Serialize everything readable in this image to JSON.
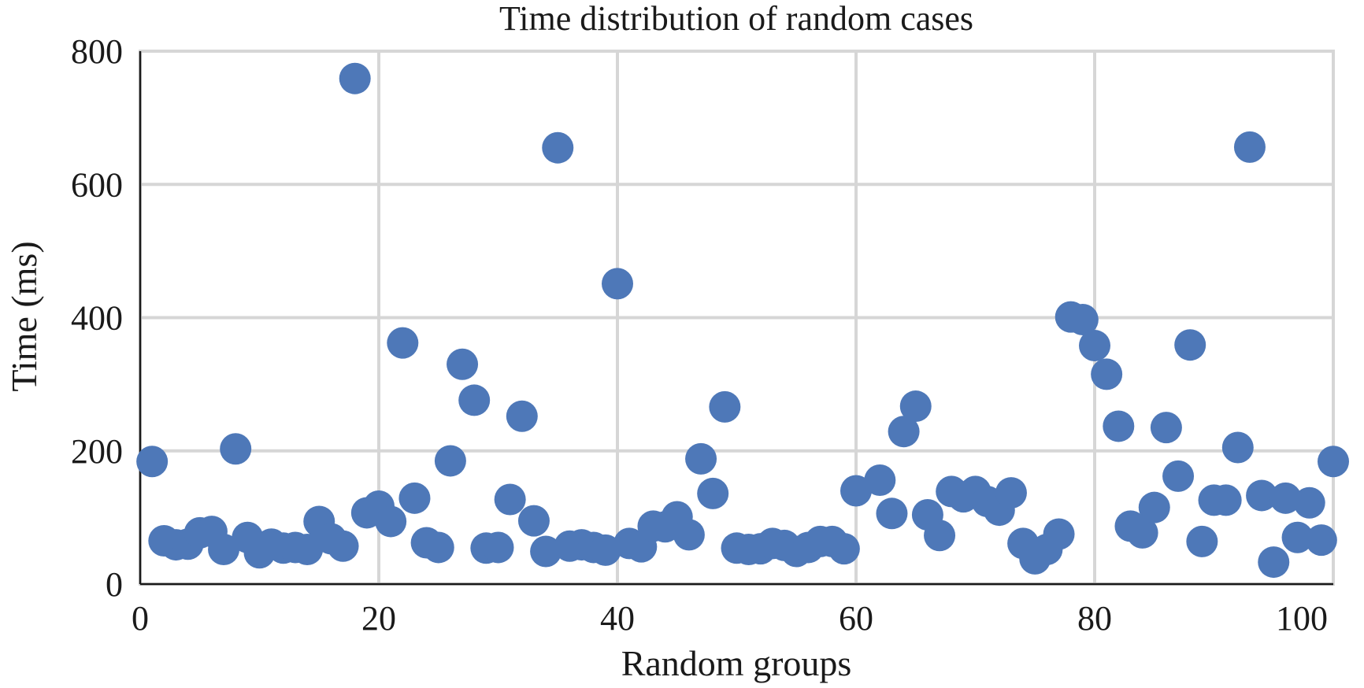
{
  "chart_data": {
    "type": "scatter",
    "title": "Time distribution of random cases",
    "xlabel": "Random groups",
    "ylabel": "Time (ms)",
    "xlim": [
      0,
      100
    ],
    "ylim": [
      0,
      800
    ],
    "x_ticks": [
      "0",
      "20",
      "40",
      "60",
      "80",
      "100"
    ],
    "y_ticks": [
      "0",
      "200",
      "400",
      "600",
      "800"
    ],
    "grid": true,
    "marker_color": "#4e78b8",
    "series": [
      {
        "name": "",
        "points": [
          {
            "x": 1,
            "y": 184
          },
          {
            "x": 2,
            "y": 65
          },
          {
            "x": 3,
            "y": 59
          },
          {
            "x": 4,
            "y": 60
          },
          {
            "x": 5,
            "y": 77
          },
          {
            "x": 6,
            "y": 79
          },
          {
            "x": 7,
            "y": 52
          },
          {
            "x": 8,
            "y": 203
          },
          {
            "x": 9,
            "y": 70
          },
          {
            "x": 10,
            "y": 47
          },
          {
            "x": 11,
            "y": 60
          },
          {
            "x": 12,
            "y": 54
          },
          {
            "x": 13,
            "y": 55
          },
          {
            "x": 14,
            "y": 52
          },
          {
            "x": 15,
            "y": 94
          },
          {
            "x": 16,
            "y": 68
          },
          {
            "x": 17,
            "y": 57
          },
          {
            "x": 18,
            "y": 759
          },
          {
            "x": 19,
            "y": 107
          },
          {
            "x": 20,
            "y": 117
          },
          {
            "x": 21,
            "y": 94
          },
          {
            "x": 22,
            "y": 362
          },
          {
            "x": 23,
            "y": 129
          },
          {
            "x": 24,
            "y": 62
          },
          {
            "x": 25,
            "y": 55
          },
          {
            "x": 26,
            "y": 185
          },
          {
            "x": 27,
            "y": 330
          },
          {
            "x": 28,
            "y": 276
          },
          {
            "x": 29,
            "y": 54
          },
          {
            "x": 30,
            "y": 55
          },
          {
            "x": 31,
            "y": 127
          },
          {
            "x": 32,
            "y": 252
          },
          {
            "x": 33,
            "y": 95
          },
          {
            "x": 34,
            "y": 49
          },
          {
            "x": 35,
            "y": 655
          },
          {
            "x": 36,
            "y": 57
          },
          {
            "x": 37,
            "y": 59
          },
          {
            "x": 38,
            "y": 55
          },
          {
            "x": 39,
            "y": 51
          },
          {
            "x": 40,
            "y": 451
          },
          {
            "x": 41,
            "y": 61
          },
          {
            "x": 42,
            "y": 56
          },
          {
            "x": 43,
            "y": 87
          },
          {
            "x": 44,
            "y": 86
          },
          {
            "x": 45,
            "y": 101
          },
          {
            "x": 46,
            "y": 74
          },
          {
            "x": 47,
            "y": 188
          },
          {
            "x": 48,
            "y": 136
          },
          {
            "x": 49,
            "y": 266
          },
          {
            "x": 50,
            "y": 54
          },
          {
            "x": 51,
            "y": 52
          },
          {
            "x": 52,
            "y": 53
          },
          {
            "x": 53,
            "y": 61
          },
          {
            "x": 54,
            "y": 58
          },
          {
            "x": 55,
            "y": 49
          },
          {
            "x": 56,
            "y": 55
          },
          {
            "x": 57,
            "y": 64
          },
          {
            "x": 58,
            "y": 64
          },
          {
            "x": 59,
            "y": 53
          },
          {
            "x": 60,
            "y": 140
          },
          {
            "x": 62,
            "y": 156
          },
          {
            "x": 63,
            "y": 106
          },
          {
            "x": 64,
            "y": 229
          },
          {
            "x": 65,
            "y": 267
          },
          {
            "x": 66,
            "y": 104
          },
          {
            "x": 67,
            "y": 73
          },
          {
            "x": 68,
            "y": 139
          },
          {
            "x": 69,
            "y": 131
          },
          {
            "x": 70,
            "y": 139
          },
          {
            "x": 71,
            "y": 124
          },
          {
            "x": 72,
            "y": 111
          },
          {
            "x": 73,
            "y": 137
          },
          {
            "x": 74,
            "y": 61
          },
          {
            "x": 75,
            "y": 38
          },
          {
            "x": 76,
            "y": 52
          },
          {
            "x": 77,
            "y": 75
          },
          {
            "x": 78,
            "y": 401
          },
          {
            "x": 79,
            "y": 397
          },
          {
            "x": 80,
            "y": 358
          },
          {
            "x": 81,
            "y": 315
          },
          {
            "x": 82,
            "y": 237
          },
          {
            "x": 83,
            "y": 87
          },
          {
            "x": 84,
            "y": 77
          },
          {
            "x": 85,
            "y": 115
          },
          {
            "x": 86,
            "y": 235
          },
          {
            "x": 87,
            "y": 162
          },
          {
            "x": 88,
            "y": 359
          },
          {
            "x": 89,
            "y": 64
          },
          {
            "x": 90,
            "y": 126
          },
          {
            "x": 91,
            "y": 126
          },
          {
            "x": 92,
            "y": 205
          },
          {
            "x": 93,
            "y": 656
          },
          {
            "x": 94,
            "y": 133
          },
          {
            "x": 95,
            "y": 33
          },
          {
            "x": 96,
            "y": 129
          },
          {
            "x": 97,
            "y": 70
          },
          {
            "x": 98,
            "y": 122
          },
          {
            "x": 99,
            "y": 66
          },
          {
            "x": 100,
            "y": 184
          }
        ]
      }
    ]
  }
}
